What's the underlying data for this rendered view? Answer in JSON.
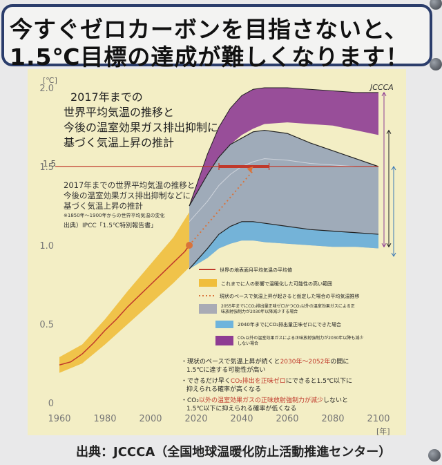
{
  "banner": {
    "line1": "今すぐゼロカーボンを目指さないと、",
    "line2": "1.5℃目標の達成が難しくなります！"
  },
  "poster": {
    "logo": "JCCCA",
    "title_lines": [
      "2017年までの",
      "世界平均気温の推移と",
      "今後の温室効果ガス排出抑制に",
      "基づく気温上昇の推計"
    ],
    "subtitle_lines": [
      "2017年までの世界平均気温の推移と",
      "今後の温室効果ガス排出抑制などに",
      "基づく気温上昇の推計"
    ],
    "note": "※1850年～1900年からの世界平均気温の変化",
    "source": "出典）IPCC「1.5℃特別報告書」",
    "legend": [
      {
        "label": "世界の地表面月平均気温の平均値",
        "kind": "line",
        "color": "#c0392b"
      },
      {
        "label": "これまでに人の影響で温暖化した可能性の高い範囲",
        "kind": "swatch",
        "color": "#f0be3c"
      },
      {
        "label": "現状のペースで気温上昇が起きると仮定した場合の平均気温推移",
        "kind": "dotted",
        "color": "#d9733a"
      },
      {
        "label": "2055年までにCO₂排出量正味ゼロかつCO₂以外の温室効果ガスによる正味放射強制力が2030年以降減少する場合",
        "kind": "swatch",
        "color": "#a9abb5"
      },
      {
        "label": "2040年までにCO₂排出量正味ゼロにできた場合",
        "kind": "swatch",
        "color": "#6fb4dc"
      },
      {
        "label": "CO₂以外の温室効果ガスによる正味放射強制力が2030年以降も減少しない場合",
        "kind": "swatch",
        "color": "#8e3c93"
      }
    ],
    "bullets": [
      {
        "a": "・現状のペースで気温上昇が続くと",
        "b": "2030年～2052年",
        "c": "の間に",
        "d": "1.5℃に達する可能性が高い"
      },
      {
        "a": "・できるだけ早く",
        "b": "CO₂排出を正味ゼロ",
        "c": "にできると1.5℃以下に",
        "d": "抑えられる確率が高くなる"
      },
      {
        "a": "・CO₂",
        "b": "以外の温室効果ガスの正味放射強制力が減少",
        "c": "しないと",
        "d": "1.5℃以下に抑えられる確率が低くなる"
      }
    ]
  },
  "credit": "出典：JCCCA（全国地球温暖化防止活動推進センター）",
  "chart_data": {
    "type": "area",
    "ylabel": "[℃]",
    "xlabel": "[年]",
    "xlim": [
      1960,
      2100
    ],
    "ylim": [
      0,
      2.0
    ],
    "x_ticks": [
      1960,
      1980,
      2000,
      2020,
      2040,
      2060,
      2080,
      2100
    ],
    "y_ticks": [
      0,
      0.5,
      1.0,
      1.5,
      2.0
    ],
    "y_tick_labels": [
      "0",
      "0.5",
      "1.0",
      "1.5",
      "2.0"
    ],
    "reference_line": {
      "y": 1.5,
      "label": "1.5"
    },
    "reach_range_years": [
      2030,
      2052
    ],
    "observed_mean": {
      "x": [
        1960,
        1965,
        1970,
        1975,
        1980,
        1985,
        1990,
        1995,
        2000,
        2005,
        2010,
        2015,
        2017
      ],
      "y": [
        0.24,
        0.26,
        0.31,
        0.38,
        0.46,
        0.53,
        0.61,
        0.68,
        0.75,
        0.82,
        0.89,
        0.96,
        1.0
      ]
    },
    "observed_range": {
      "x": [
        1960,
        1970,
        1980,
        1990,
        2000,
        2010,
        2017
      ],
      "low": [
        0.19,
        0.25,
        0.37,
        0.5,
        0.63,
        0.76,
        0.86
      ],
      "high": [
        0.29,
        0.37,
        0.53,
        0.71,
        0.88,
        1.05,
        1.21
      ]
    },
    "current_pace": {
      "x": [
        2017,
        2045
      ],
      "y": [
        1.0,
        1.5
      ]
    },
    "scenarios": {
      "x": [
        2017,
        2025,
        2030,
        2035,
        2040,
        2045,
        2050,
        2060,
        2070,
        2080,
        2090,
        2100
      ],
      "gray_low": [
        0.85,
        0.92,
        0.98,
        1.01,
        1.03,
        1.03,
        1.02,
        1.01,
        1.0,
        0.99,
        0.99,
        0.98
      ],
      "gray_high": [
        1.25,
        1.45,
        1.56,
        1.64,
        1.68,
        1.72,
        1.73,
        1.71,
        1.65,
        1.6,
        1.55,
        1.5
      ],
      "purple_high": [
        1.25,
        1.58,
        1.75,
        1.87,
        1.95,
        1.99,
        2.0,
        2.0,
        1.99,
        1.98,
        1.97,
        1.97
      ],
      "purple_low": [
        1.25,
        1.45,
        1.56,
        1.64,
        1.7,
        1.74,
        1.77,
        1.78,
        1.77,
        1.76,
        1.73,
        1.7
      ],
      "blue_low": [
        0.85,
        0.92,
        0.98,
        1.01,
        1.03,
        1.03,
        1.02,
        1.01,
        1.0,
        0.99,
        0.99,
        0.98
      ],
      "blue_high": [
        0.85,
        0.98,
        1.07,
        1.12,
        1.15,
        1.15,
        1.14,
        1.12,
        1.1,
        1.09,
        1.08,
        1.07
      ],
      "inner_line": [
        1.15,
        1.28,
        1.38,
        1.45,
        1.5,
        1.53,
        1.55,
        1.54,
        1.52,
        1.51,
        1.5,
        1.5
      ]
    }
  }
}
